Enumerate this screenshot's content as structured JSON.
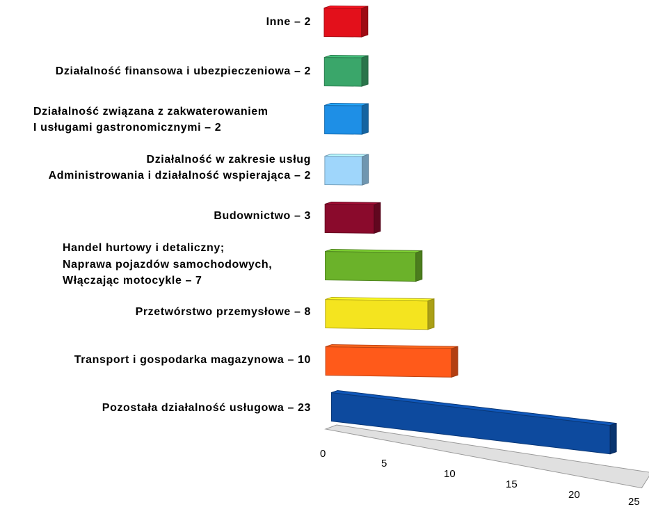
{
  "chart_data": {
    "type": "bar",
    "orientation": "horizontal",
    "style": "3d",
    "categories": [
      "Inne – 2",
      "Działalność finansowa i ubezpieczeniowa – 2",
      "Działalność związana z zakwaterowaniem\nI usługami gastronomicznymi – 2",
      "Działalność w zakresie usług\nAdministrowania i działalność wspierająca – 2",
      "Budownictwo – 3",
      "Handel hurtowy i detaliczny;\nNaprawa pojazdów samochodowych,\nWłączając motocykle – 7",
      "Przetwórstwo przemysłowe – 8",
      "Transport i gospodarka magazynowa – 10",
      "Pozostała działalność usługowa – 23"
    ],
    "values": [
      2,
      2,
      2,
      2,
      3,
      7,
      8,
      10,
      23
    ],
    "colors": [
      "#e3101b",
      "#3aa66a",
      "#1e8fe6",
      "#9fd6fb",
      "#8a0a2c",
      "#6bb22a",
      "#f4e41f",
      "#ff5a1a",
      "#0d4a9e"
    ],
    "xaxis_ticks": [
      "0",
      "5",
      "10",
      "15",
      "20",
      "25"
    ],
    "xlim": [
      0,
      25
    ],
    "title": "",
    "xlabel": "",
    "ylabel": "",
    "legend": "none",
    "grid": false
  }
}
